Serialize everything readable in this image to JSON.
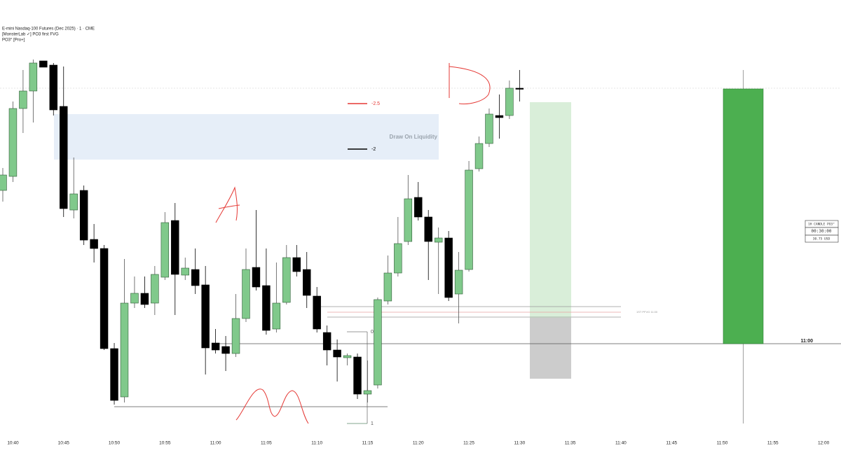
{
  "chart_data": {
    "type": "candlestick",
    "title": "E-mini Nasdaq-100 Futures (Dec 2025) · 1 · CME",
    "indicators": [
      "[MonsterLab ✓] PO3 first FVG",
      "PO3° [Pro+]"
    ],
    "x": [
      "10:39",
      "10:40",
      "10:41",
      "10:42",
      "10:43",
      "10:44",
      "10:45",
      "10:46",
      "10:47",
      "10:48",
      "10:49",
      "10:50",
      "10:51",
      "10:52",
      "10:53",
      "10:54",
      "10:55",
      "10:56",
      "10:57",
      "10:58",
      "10:59",
      "11:00",
      "11:01",
      "11:02",
      "11:03",
      "11:04",
      "11:05",
      "11:06",
      "11:07",
      "11:08",
      "11:09",
      "11:10",
      "11:11",
      "11:12",
      "11:13",
      "11:14",
      "11:15",
      "11:16",
      "11:17",
      "11:18",
      "11:19",
      "11:20",
      "11:21",
      "11:22",
      "11:23",
      "11:24",
      "11:25",
      "11:26",
      "11:27",
      "11:28",
      "11:29",
      "11:30"
    ],
    "open": [
      348,
      368,
      465,
      490,
      533,
      527,
      468,
      320,
      348,
      278,
      265,
      122,
      53,
      187,
      201,
      187,
      224,
      305,
      227,
      235,
      213,
      130,
      125,
      115,
      165,
      238,
      212,
      150,
      188,
      252,
      235,
      197,
      145,
      120,
      109,
      110,
      57,
      70,
      190,
      230,
      275,
      338,
      310,
      274,
      280,
      200,
      235,
      379,
      415,
      455,
      455,
      494
    ],
    "high": [
      380,
      475,
      520,
      535,
      533,
      530,
      525,
      395,
      355,
      300,
      270,
      130,
      250,
      225,
      225,
      240,
      317,
      330,
      252,
      265,
      240,
      150,
      140,
      200,
      265,
      320,
      265,
      245,
      270,
      270,
      260,
      210,
      155,
      135,
      115,
      115,
      105,
      195,
      255,
      310,
      370,
      360,
      320,
      295,
      290,
      260,
      390,
      425,
      465,
      485,
      505,
      520
    ],
    "low": [
      332,
      360,
      430,
      445,
      524,
      455,
      310,
      308,
      270,
      245,
      120,
      42,
      45,
      180,
      180,
      170,
      220,
      170,
      220,
      200,
      85,
      115,
      90,
      110,
      160,
      205,
      142,
      145,
      185,
      225,
      180,
      145,
      98,
      75,
      98,
      50,
      45,
      65,
      185,
      225,
      270,
      305,
      220,
      200,
      190,
      158,
      232,
      375,
      410,
      422,
      450,
      475
    ],
    "close": [
      370,
      465,
      490,
      530,
      524,
      463,
      322,
      343,
      277,
      265,
      122,
      48,
      187,
      201,
      185,
      228,
      302,
      228,
      237,
      212,
      123,
      120,
      115,
      165,
      235,
      210,
      148,
      187,
      252,
      232,
      198,
      150,
      120,
      110,
      112,
      57,
      62,
      192,
      230,
      272,
      336,
      310,
      275,
      280,
      195,
      234,
      377,
      415,
      457,
      452,
      494,
      493
    ],
    "up_color": "#80c98b",
    "down_color": "#000000",
    "ylim": [
      0,
      600
    ],
    "xlim": [
      "10:39",
      "12:02"
    ],
    "xticks": [
      "10:40",
      "10:45",
      "10:50",
      "10:55",
      "11:00",
      "11:05",
      "11:10",
      "11:15",
      "11:20",
      "11:25",
      "11:30",
      "11:35",
      "11:40",
      "11:45",
      "11:50",
      "11:55",
      "12:00"
    ],
    "annotations": [
      "Draw On Liquidity",
      "-2.5",
      "-2",
      "0",
      "1",
      "1ST PFVG 11:00",
      "11:00"
    ],
    "htf_candle": {
      "label": "1H CANDLE PO3°",
      "timer": "00:30:00",
      "range": "30.75 USD",
      "open": 129,
      "high": 520,
      "low": 15,
      "close": 493,
      "color": "#4caf50"
    }
  }
}
